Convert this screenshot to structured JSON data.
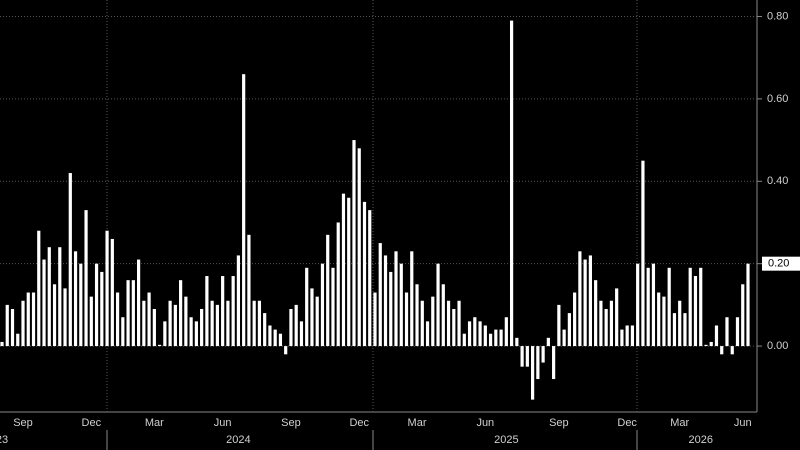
{
  "chart_data": {
    "type": "bar",
    "color": "#ffffff",
    "grid": true,
    "values": [
      0.01,
      0.1,
      0.09,
      0.03,
      0.11,
      0.13,
      0.13,
      0.28,
      0.21,
      0.24,
      0.15,
      0.24,
      0.14,
      0.42,
      0.23,
      0.2,
      0.33,
      0.12,
      0.2,
      0.18,
      0.28,
      0.26,
      0.13,
      0.07,
      0.16,
      0.16,
      0.21,
      0.11,
      0.13,
      0.09,
      0.003,
      0.06,
      0.11,
      0.1,
      0.16,
      0.12,
      0.07,
      0.06,
      0.09,
      0.17,
      0.11,
      0.1,
      0.17,
      0.11,
      0.17,
      0.22,
      0.66,
      0.27,
      0.11,
      0.11,
      0.08,
      0.05,
      0.04,
      0.03,
      -0.02,
      0.09,
      0.1,
      0.06,
      0.19,
      0.14,
      0.12,
      0.2,
      0.27,
      0.19,
      0.3,
      0.37,
      0.36,
      0.5,
      0.48,
      0.35,
      0.33,
      0.13,
      0.25,
      0.22,
      0.18,
      0.23,
      0.2,
      0.13,
      0.23,
      0.15,
      0.11,
      0.06,
      0.12,
      0.2,
      0.15,
      0.11,
      0.09,
      0.11,
      0.03,
      0.06,
      0.07,
      0.06,
      0.05,
      0.03,
      0.04,
      0.04,
      0.07,
      0.79,
      0.02,
      -0.05,
      -0.05,
      -0.13,
      -0.08,
      -0.04,
      0.02,
      -0.08,
      0.1,
      0.04,
      0.08,
      0.13,
      0.23,
      0.21,
      0.22,
      0.16,
      0.11,
      0.09,
      0.11,
      0.14,
      0.04,
      0.05,
      0.05,
      0.2,
      0.45,
      0.19,
      0.2,
      0.13,
      0.12,
      0.19,
      0.08,
      0.11,
      0.08,
      0.19,
      0.17,
      0.19,
      0.003,
      0.01,
      0.05,
      -0.02,
      0.07,
      -0.02,
      0.07,
      0.15,
      0.2
    ],
    "categories": [
      null,
      null,
      null,
      null,
      "Sep",
      null,
      null,
      null,
      null,
      null,
      null,
      null,
      null,
      null,
      null,
      null,
      null,
      "Dec",
      null,
      null,
      null,
      null,
      null,
      null,
      null,
      null,
      null,
      null,
      null,
      "Mar",
      null,
      null,
      null,
      null,
      null,
      null,
      null,
      null,
      null,
      null,
      null,
      null,
      "Jun",
      null,
      null,
      null,
      null,
      null,
      null,
      null,
      null,
      null,
      null,
      null,
      null,
      "Sep",
      null,
      null,
      null,
      null,
      null,
      null,
      null,
      null,
      null,
      null,
      null,
      null,
      "Dec",
      null,
      null,
      null,
      null,
      null,
      null,
      null,
      null,
      null,
      null,
      "Mar",
      null,
      null,
      null,
      null,
      null,
      null,
      null,
      null,
      null,
      null,
      null,
      null,
      "Jun",
      null,
      null,
      null,
      null,
      null,
      null,
      null,
      null,
      null,
      null,
      null,
      null,
      null,
      "Sep",
      null,
      null,
      null,
      null,
      null,
      null,
      null,
      null,
      null,
      null,
      null,
      null,
      "Dec",
      null,
      null,
      null,
      null,
      null,
      null,
      null,
      null,
      null,
      "Mar",
      null,
      null,
      null,
      null,
      null,
      null,
      null,
      null,
      null,
      null,
      null,
      "Jun",
      null
    ],
    "year_categories": [
      "23",
      null,
      null,
      null,
      null,
      null,
      null,
      null,
      null,
      null,
      null,
      null,
      null,
      null,
      null,
      null,
      null,
      null,
      null,
      null,
      null,
      null,
      null,
      null,
      null,
      null,
      null,
      null,
      null,
      null,
      null,
      null,
      null,
      null,
      null,
      null,
      null,
      null,
      null,
      null,
      null,
      null,
      null,
      null,
      null,
      "2024",
      null,
      null,
      null,
      null,
      null,
      null,
      null,
      null,
      null,
      null,
      null,
      null,
      null,
      null,
      null,
      null,
      null,
      null,
      null,
      null,
      null,
      null,
      null,
      null,
      null,
      null,
      null,
      null,
      null,
      null,
      null,
      null,
      null,
      null,
      null,
      null,
      null,
      null,
      null,
      null,
      null,
      null,
      null,
      null,
      null,
      null,
      null,
      null,
      null,
      null,
      "2025",
      null,
      null,
      null,
      null,
      null,
      null,
      null,
      null,
      null,
      null,
      null,
      null,
      null,
      null,
      null,
      null,
      null,
      null,
      null,
      null,
      null,
      null,
      null,
      null,
      null,
      null,
      null,
      null,
      null,
      null,
      null,
      null,
      null,
      null,
      null,
      null,
      "2026",
      null,
      null,
      null,
      null,
      null,
      null,
      null,
      null,
      null
    ],
    "ylim": [
      -0.16,
      0.84
    ],
    "yticks": [
      {
        "value": 0,
        "label": "0.00"
      },
      {
        "value": 0.2,
        "label": "0.20"
      },
      {
        "value": 0.4,
        "label": "0.40"
      },
      {
        "value": 0.6,
        "label": "0.60"
      },
      {
        "value": 0.8,
        "label": "0.80"
      }
    ],
    "last_value": {
      "value": 0.2,
      "label": "0.20"
    }
  }
}
